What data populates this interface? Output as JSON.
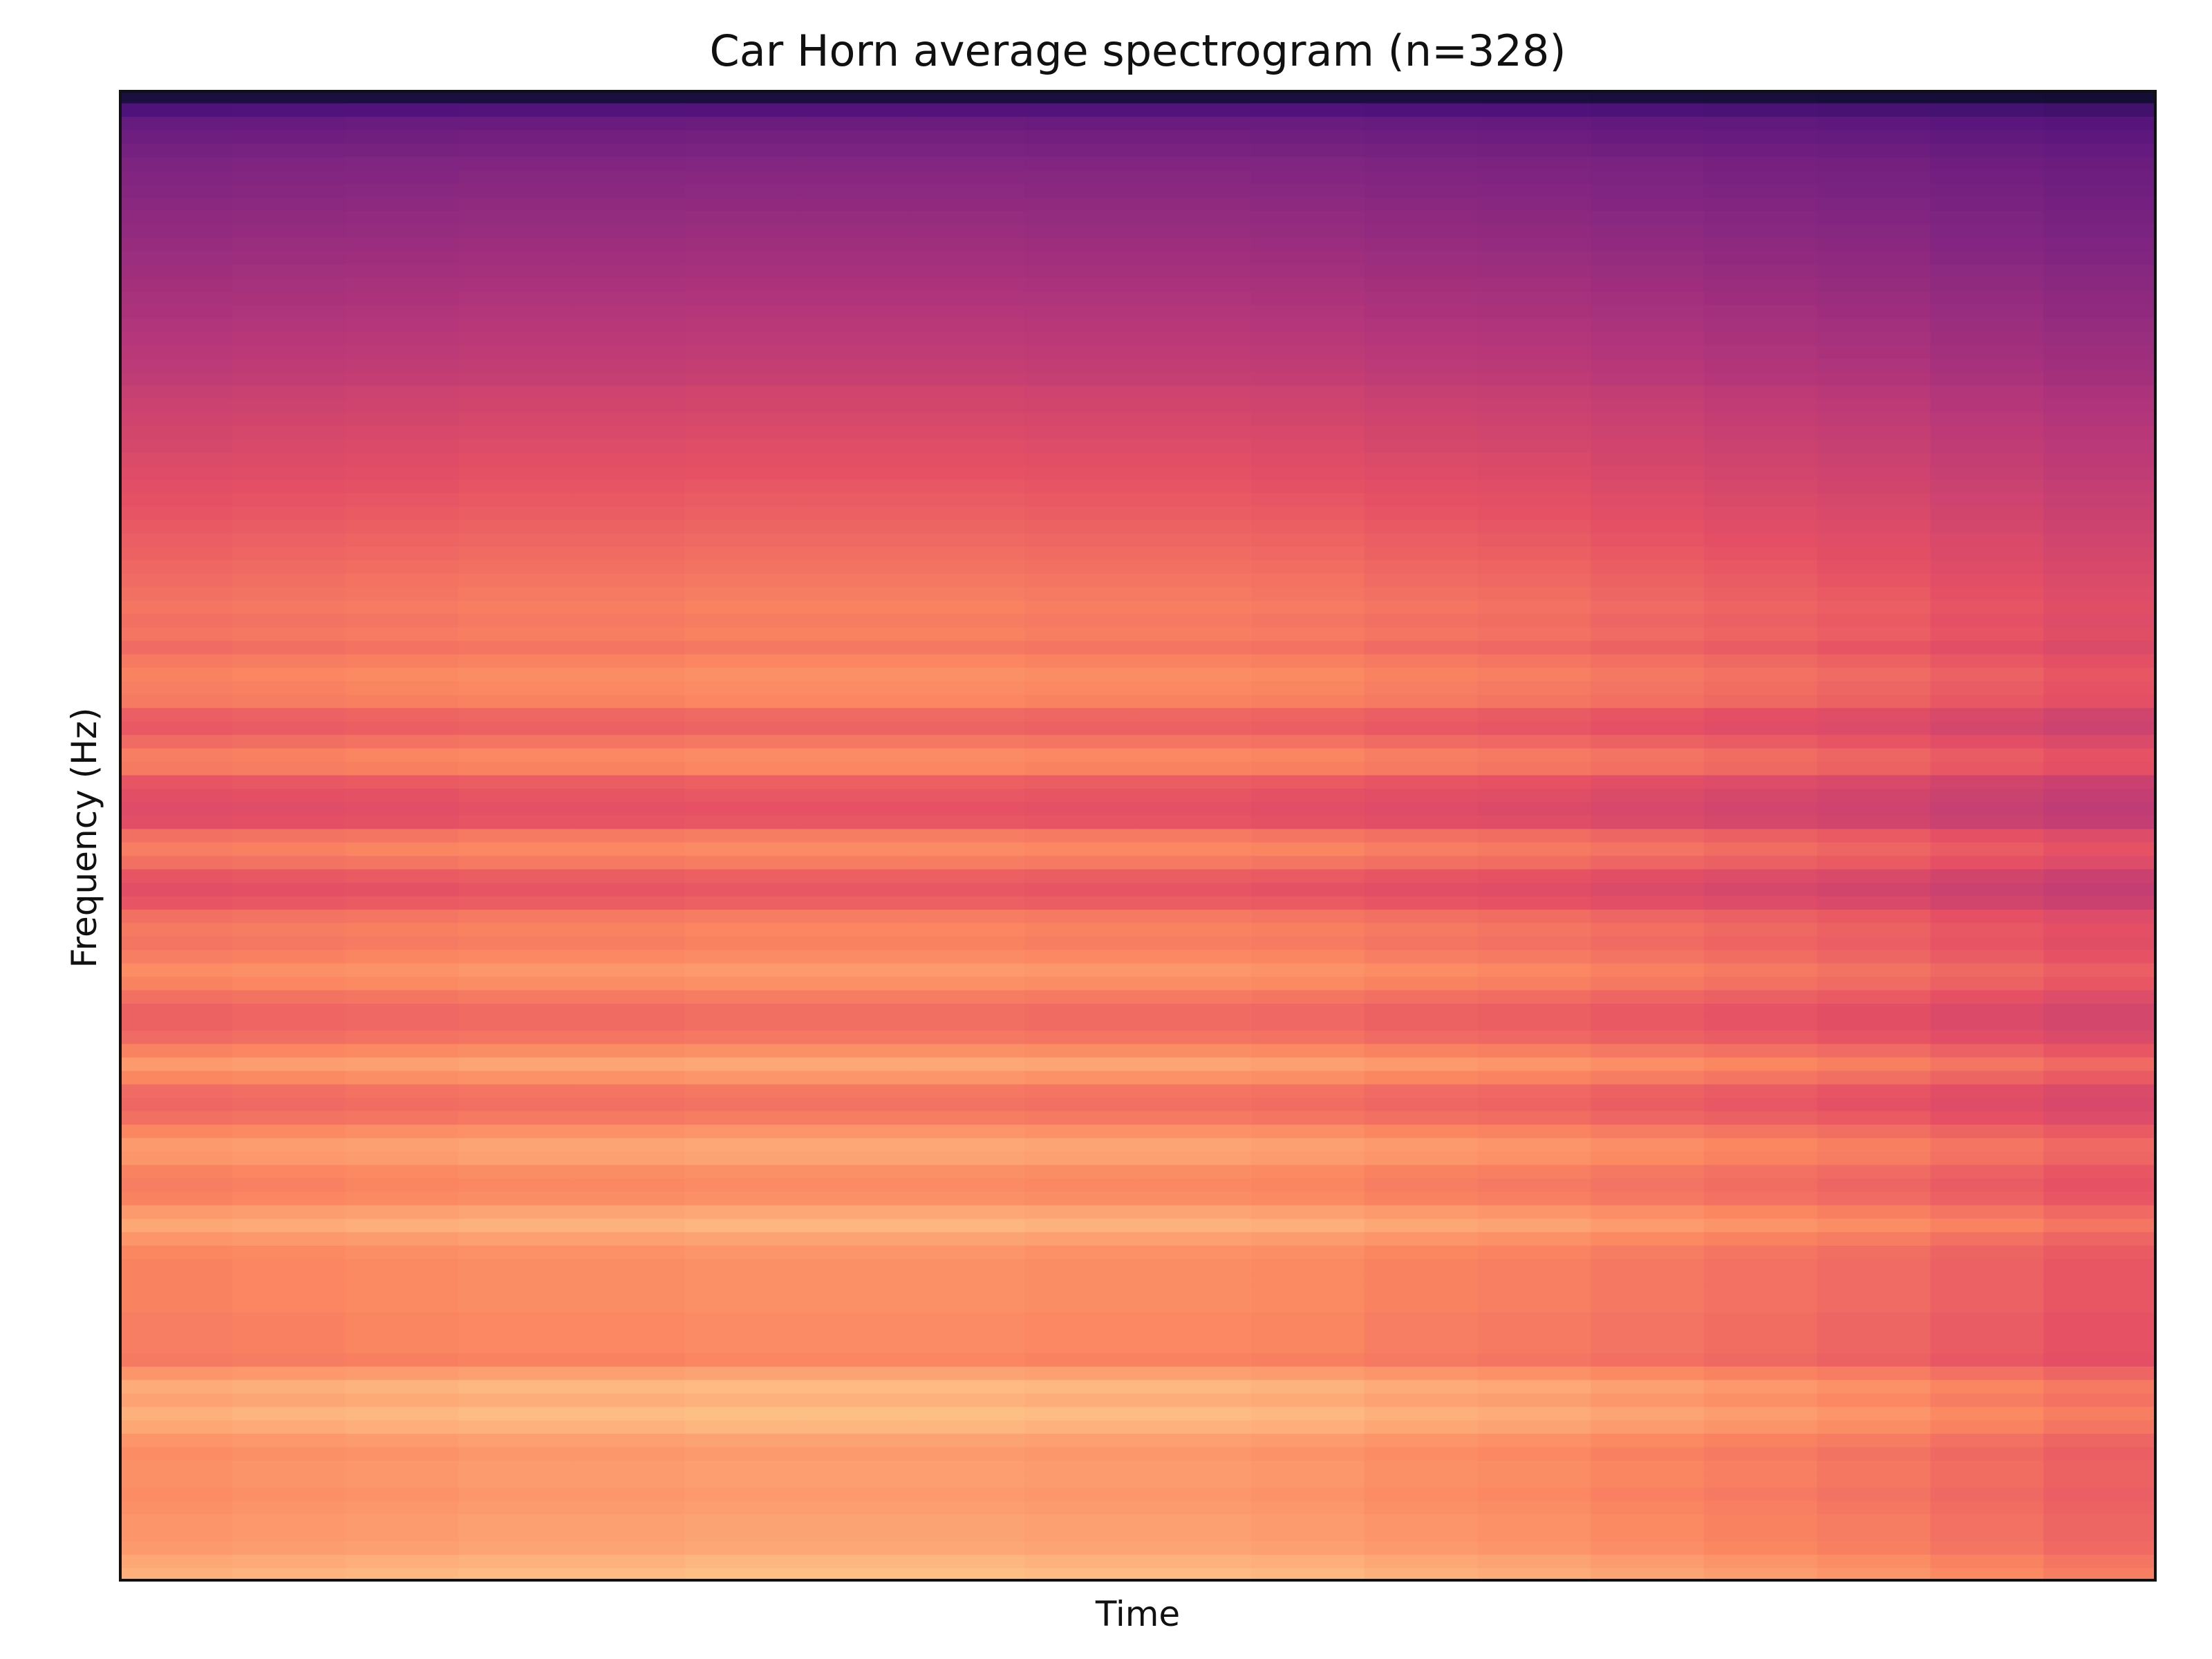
{
  "chart_data": {
    "type": "heatmap",
    "title": "Car Horn average spectrogram (n=328)",
    "xlabel": "Time",
    "ylabel": "Frequency (Hz)",
    "colormap": "magma",
    "grid": false,
    "x_ticks": [],
    "y_ticks": [],
    "value_range": [
      0,
      1
    ],
    "row_order": "top-to-bottom (highest frequency bin first)",
    "row_values": [
      0.12,
      0.25,
      0.31,
      0.33,
      0.35,
      0.37,
      0.38,
      0.39,
      0.4,
      0.41,
      0.42,
      0.43,
      0.44,
      0.45,
      0.46,
      0.47,
      0.48,
      0.49,
      0.5,
      0.51,
      0.52,
      0.53,
      0.55,
      0.56,
      0.57,
      0.58,
      0.59,
      0.6,
      0.61,
      0.62,
      0.63,
      0.64,
      0.65,
      0.66,
      0.67,
      0.68,
      0.69,
      0.7,
      0.71,
      0.7,
      0.71,
      0.69,
      0.72,
      0.74,
      0.73,
      0.72,
      0.66,
      0.65,
      0.69,
      0.73,
      0.72,
      0.64,
      0.62,
      0.61,
      0.62,
      0.7,
      0.73,
      0.7,
      0.64,
      0.62,
      0.64,
      0.7,
      0.72,
      0.71,
      0.73,
      0.76,
      0.74,
      0.7,
      0.67,
      0.67,
      0.69,
      0.74,
      0.79,
      0.75,
      0.69,
      0.68,
      0.7,
      0.75,
      0.79,
      0.78,
      0.74,
      0.73,
      0.74,
      0.79,
      0.82,
      0.78,
      0.75,
      0.74,
      0.74,
      0.74,
      0.74,
      0.73,
      0.73,
      0.73,
      0.72,
      0.78,
      0.83,
      0.81,
      0.84,
      0.82,
      0.78,
      0.76,
      0.77,
      0.77,
      0.76,
      0.77,
      0.78,
      0.78,
      0.79,
      0.82,
      0.84
    ],
    "time_profile": [
      1.0,
      1.01,
      1.02,
      1.03,
      1.03,
      1.04,
      1.04,
      1.04,
      1.03,
      1.03,
      1.02,
      1.0,
      0.99,
      0.97,
      0.95,
      0.93,
      0.9,
      0.87
    ]
  }
}
